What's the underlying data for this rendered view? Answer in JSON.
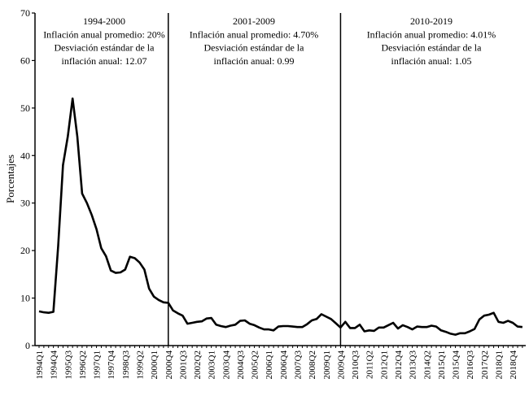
{
  "chart_data": {
    "type": "line",
    "title": "",
    "xlabel": "",
    "ylabel": "Porcentajes",
    "ylim": [
      0,
      70
    ],
    "yticks": [
      0,
      10,
      20,
      30,
      40,
      50,
      60,
      70
    ],
    "grid": false,
    "line_color": "#000000",
    "x": [
      "1994Q1",
      "1994Q2",
      "1994Q3",
      "1994Q4",
      "1995Q1",
      "1995Q2",
      "1995Q3",
      "1995Q4",
      "1996Q1",
      "1996Q2",
      "1996Q3",
      "1996Q4",
      "1997Q1",
      "1997Q2",
      "1997Q3",
      "1997Q4",
      "1998Q1",
      "1998Q2",
      "1998Q3",
      "1998Q4",
      "1999Q1",
      "1999Q2",
      "1999Q3",
      "1999Q4",
      "2000Q1",
      "2000Q2",
      "2000Q3",
      "2000Q4",
      "2001Q1",
      "2001Q2",
      "2001Q3",
      "2001Q4",
      "2002Q1",
      "2002Q2",
      "2002Q3",
      "2002Q4",
      "2003Q1",
      "2003Q2",
      "2003Q3",
      "2003Q4",
      "2004Q1",
      "2004Q2",
      "2004Q3",
      "2004Q4",
      "2005Q1",
      "2005Q2",
      "2005Q3",
      "2005Q4",
      "2006Q1",
      "2006Q2",
      "2006Q3",
      "2006Q4",
      "2007Q1",
      "2007Q2",
      "2007Q3",
      "2007Q4",
      "2008Q1",
      "2008Q2",
      "2008Q3",
      "2008Q4",
      "2009Q1",
      "2009Q2",
      "2009Q3",
      "2009Q4",
      "2010Q1",
      "2010Q2",
      "2010Q3",
      "2010Q4",
      "2011Q1",
      "2011Q2",
      "2011Q3",
      "2011Q4",
      "2012Q1",
      "2012Q2",
      "2012Q3",
      "2012Q4",
      "2013Q1",
      "2013Q2",
      "2013Q3",
      "2013Q4",
      "2014Q1",
      "2014Q2",
      "2014Q3",
      "2014Q4",
      "2015Q1",
      "2015Q2",
      "2015Q3",
      "2015Q4",
      "2016Q1",
      "2016Q2",
      "2016Q3",
      "2016Q4",
      "2017Q1",
      "2017Q2",
      "2017Q3",
      "2017Q4",
      "2018Q1",
      "2018Q2",
      "2018Q3",
      "2018Q4",
      "2019Q1",
      "2019Q2"
    ],
    "values": [
      7.2,
      7.0,
      6.9,
      7.1,
      21,
      38,
      44,
      52,
      44,
      32,
      30,
      27.5,
      24.5,
      20.5,
      18.8,
      15.8,
      15.3,
      15.4,
      16,
      18.7,
      18.4,
      17.5,
      16,
      12,
      10.3,
      9.6,
      9.1,
      9.0,
      7.4,
      6.8,
      6.3,
      4.6,
      4.8,
      5.0,
      5.1,
      5.7,
      5.8,
      4.4,
      4.1,
      3.9,
      4.2,
      4.4,
      5.2,
      5.3,
      4.6,
      4.3,
      3.8,
      3.4,
      3.4,
      3.2,
      4.0,
      4.1,
      4.1,
      4.0,
      3.9,
      3.9,
      4.5,
      5.3,
      5.6,
      6.6,
      6.1,
      5.6,
      4.7,
      3.8,
      5.0,
      3.7,
      3.7,
      4.4,
      3.0,
      3.2,
      3.1,
      3.8,
      3.8,
      4.3,
      4.8,
      3.6,
      4.3,
      3.9,
      3.4,
      4.0,
      3.9,
      3.9,
      4.2,
      4.0,
      3.2,
      2.9,
      2.5,
      2.3,
      2.6,
      2.6,
      3.0,
      3.5,
      5.5,
      6.3,
      6.5,
      6.9,
      5.0,
      4.8,
      5.2,
      4.8,
      4.0,
      3.9
    ],
    "tick_labels": [
      "1994Q1",
      "1994Q4",
      "1995Q3",
      "1996Q2",
      "1997Q1",
      "1997Q4",
      "1998Q3",
      "1999Q2",
      "2000Q1",
      "2000Q4",
      "2001Q3",
      "2002Q2",
      "2003Q1",
      "2003Q4",
      "2004Q3",
      "2005Q2",
      "2006Q1",
      "2006Q4",
      "2007Q3",
      "2008Q2",
      "2009Q1",
      "2009Q4",
      "2010Q3",
      "2011Q2",
      "2012Q1",
      "2012Q4",
      "2013Q3",
      "2014Q2",
      "2015Q1",
      "2015Q4",
      "2016Q3",
      "2017Q2",
      "2018Q1",
      "2018Q4"
    ],
    "dividers": [
      "2000Q4",
      "2009Q4"
    ],
    "annotations": [
      {
        "lines": [
          "1994-2000",
          "Inflación anual promedio: 20%",
          "Desviación estándar de la",
          "inflación anual: 12.07"
        ]
      },
      {
        "lines": [
          "2001-2009",
          "Inflación anual promedio: 4.70%",
          "Desviación estándar de la",
          "inflación anual: 0.99"
        ]
      },
      {
        "lines": [
          "2010-2019",
          "Inflación anual promedio: 4.01%",
          "Desviación estándar de la",
          "inflación anual: 1.05"
        ]
      }
    ]
  }
}
